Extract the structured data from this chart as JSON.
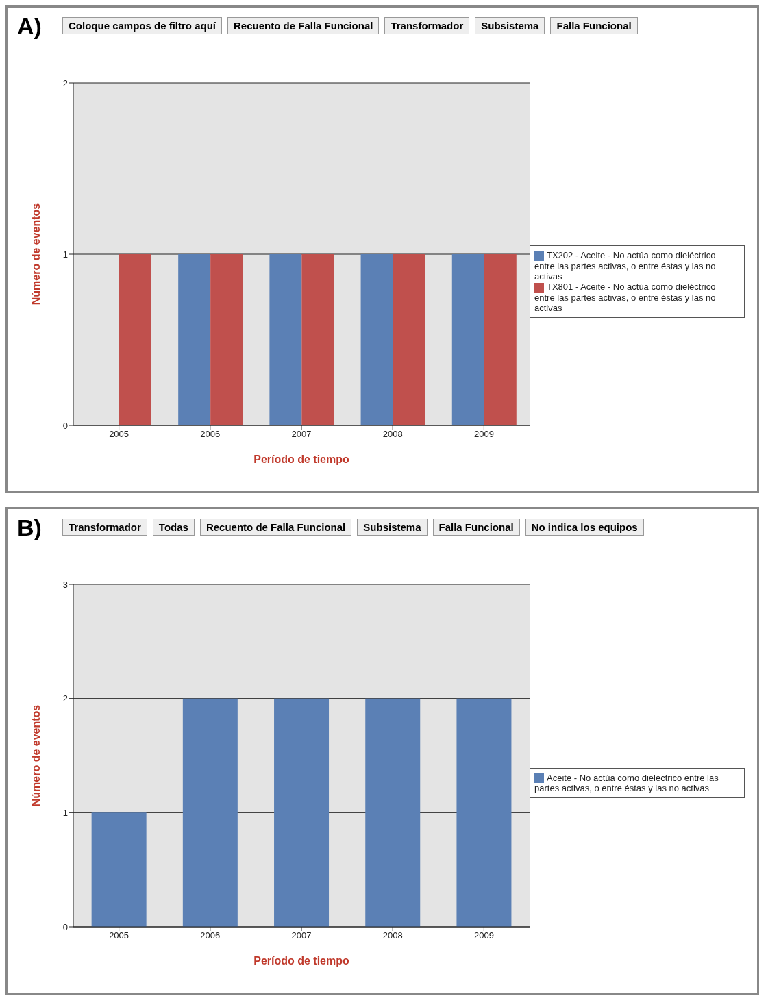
{
  "chart_data": [
    {
      "type": "bar",
      "title": "A)",
      "xlabel": "Período de tiempo",
      "ylabel": "Número de eventos",
      "categories": [
        "2005",
        "2006",
        "2007",
        "2008",
        "2009"
      ],
      "series": [
        {
          "name": "TX202 - Aceite - No actúa como dieléctrico entre las partes activas, o entre éstas y las no activas",
          "color": "#5b80b5",
          "values": [
            0,
            1,
            1,
            1,
            1
          ]
        },
        {
          "name": "TX801 - Aceite - No actúa como dieléctrico entre las partes activas, o entre éstas y las no activas",
          "color": "#c0504d",
          "values": [
            1,
            1,
            1,
            1,
            1
          ]
        }
      ],
      "ylim": [
        0,
        2
      ],
      "yticks": [
        0,
        1,
        2
      ],
      "grid": "y",
      "legend": "right",
      "annotations": [
        "Coloque campos de filtro aquí",
        "Recuento de Falla Funcional",
        "Transformador",
        "Subsistema",
        "Falla Funcional"
      ]
    },
    {
      "type": "bar",
      "title": "B)",
      "xlabel": "Período de tiempo",
      "ylabel": "Número de eventos",
      "categories": [
        "2005",
        "2006",
        "2007",
        "2008",
        "2009"
      ],
      "series": [
        {
          "name": "Aceite - No actúa como dieléctrico entre las partes activas, o entre éstas y las no activas",
          "color": "#5b80b5",
          "values": [
            1,
            2,
            2,
            2,
            2
          ]
        }
      ],
      "ylim": [
        0,
        3
      ],
      "yticks": [
        0,
        1,
        2,
        3
      ],
      "grid": "y",
      "legend": "right",
      "annotations": [
        "Transformador",
        "Todas",
        "Recuento de Falla Funcional",
        "Subsistema",
        "Falla Funcional",
        "No indica los equipos"
      ]
    }
  ]
}
